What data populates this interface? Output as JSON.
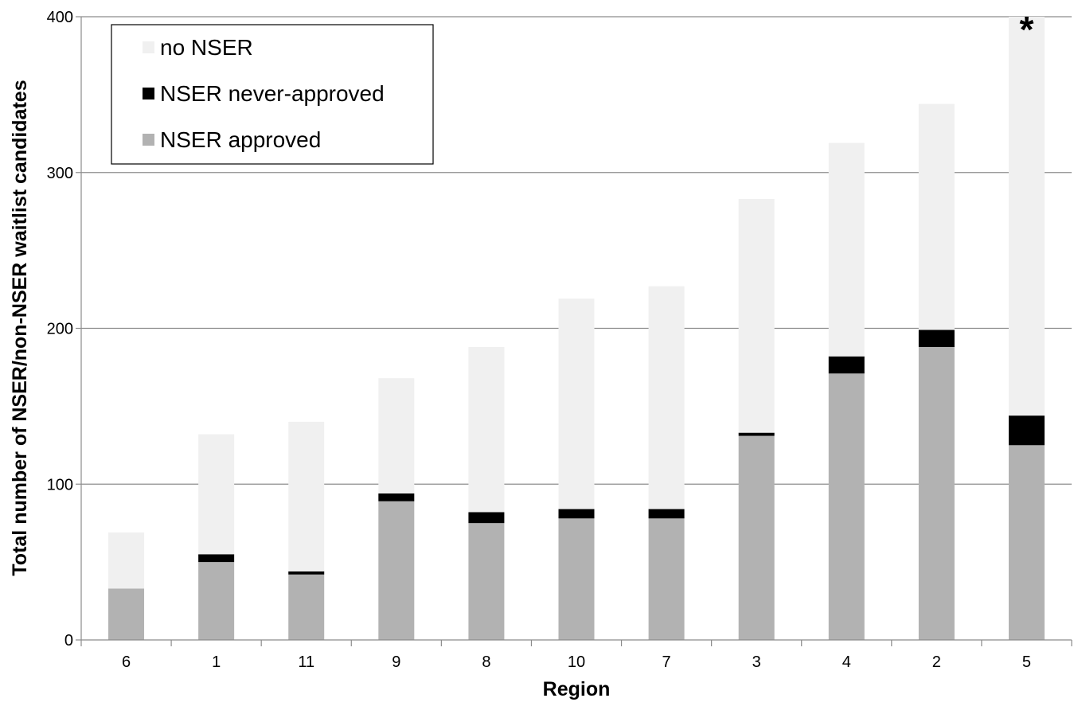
{
  "chart_data": {
    "type": "bar",
    "stacked": true,
    "title": "",
    "xlabel": "Region",
    "ylabel": "Total number of NSER/non-NSER waitlist candidates",
    "categories": [
      "6",
      "1",
      "11",
      "9",
      "8",
      "10",
      "7",
      "3",
      "4",
      "2",
      "5"
    ],
    "series": [
      {
        "name": "NSER approved",
        "color": "#b2b2b2",
        "values": [
          33,
          50,
          42,
          89,
          75,
          78,
          78,
          131,
          171,
          188,
          125
        ]
      },
      {
        "name": "NSER never-approved",
        "color": "#000000",
        "values": [
          0,
          5,
          2,
          5,
          7,
          6,
          6,
          2,
          11,
          11,
          19
        ]
      },
      {
        "name": "no NSER",
        "color": "#f0f0f0",
        "values": [
          36,
          77,
          96,
          74,
          106,
          135,
          143,
          150,
          137,
          145,
          256
        ]
      }
    ],
    "ylim": [
      0,
      400
    ],
    "yticks": [
      "0",
      "100",
      "200",
      "300",
      "400"
    ],
    "grid": true,
    "legend_position": "top-left",
    "legend_order": [
      "no NSER",
      "NSER never-approved",
      "NSER approved"
    ],
    "annotations": [
      {
        "category": "5",
        "text": "*"
      }
    ]
  }
}
